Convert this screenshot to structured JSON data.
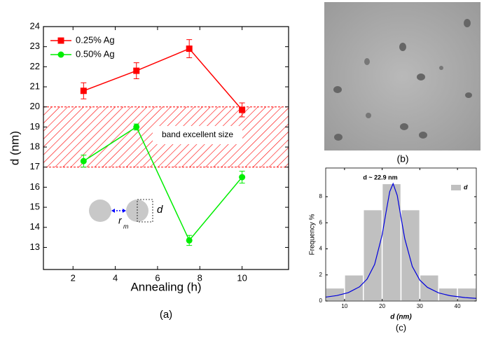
{
  "chart_data": [
    {
      "type": "line",
      "caption": "(a)",
      "x_label": "Annealing (h)",
      "y_label": "d (nm)",
      "x": [
        2.5,
        5,
        7.5,
        10
      ],
      "series": [
        {
          "name": "0.25% Ag",
          "color": "#ff0000",
          "marker": "square",
          "values": [
            20.8,
            21.8,
            22.9,
            19.85
          ],
          "errors": [
            0.4,
            0.4,
            0.45,
            0.35
          ]
        },
        {
          "name": "0.50% Ag",
          "color": "#00ee00",
          "marker": "circle",
          "values": [
            17.3,
            19.0,
            13.35,
            16.5
          ],
          "errors": [
            0.3,
            0.15,
            0.25,
            0.3
          ]
        }
      ],
      "xlim": [
        0.6,
        12.2
      ],
      "xticks": [
        2,
        4,
        6,
        8,
        10
      ],
      "ylim": [
        11.9,
        24
      ],
      "yticks": [
        13,
        14,
        15,
        16,
        17,
        18,
        19,
        20,
        21,
        22,
        23,
        24
      ],
      "legend": "upper left",
      "band": {
        "ylim": [
          17,
          20
        ],
        "label": "band excellent size",
        "color": "#ff0000"
      },
      "inset": {
        "d_label": "d",
        "r_label": "r",
        "r_subscript": "m"
      }
    },
    {
      "type": "histogram",
      "caption": "(c)",
      "x_label": "d (nm)",
      "y_label": "Frequency %",
      "annotation": "d ~ 22.9 nm",
      "bins": [
        5,
        10,
        15,
        20,
        25,
        30,
        35,
        40,
        45
      ],
      "values": [
        1,
        2,
        7,
        9,
        7,
        2,
        1,
        1
      ],
      "color": "#c0c0c0",
      "name": "d",
      "fit": {
        "color": "#0000dd",
        "x": [
          5,
          8,
          11,
          14,
          16,
          18,
          20,
          21,
          22,
          22.9,
          24,
          25,
          26,
          28,
          30,
          32,
          35,
          38,
          42,
          45
        ],
        "values": [
          0.3,
          0.42,
          0.64,
          1.09,
          1.68,
          2.81,
          5.08,
          6.76,
          8.38,
          9,
          8.1,
          6.41,
          4.78,
          2.65,
          1.6,
          1.05,
          0.62,
          0.41,
          0.26,
          0.2
        ]
      },
      "xlim": [
        5,
        45
      ],
      "xticks": [
        10,
        20,
        30,
        40
      ],
      "ylim": [
        0,
        10.2
      ],
      "yticks": [
        0,
        2,
        4,
        6,
        8
      ],
      "legend": "upper right"
    }
  ],
  "image_panel": {
    "caption": "(b)"
  }
}
